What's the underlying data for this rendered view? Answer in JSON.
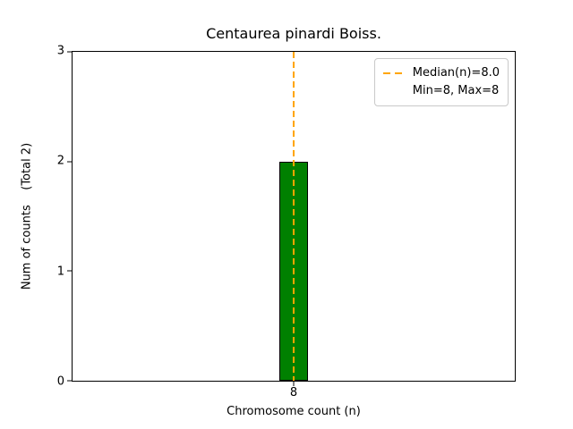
{
  "chart_data": {
    "type": "bar",
    "title": "Centaurea pinardi Boiss.",
    "xlabel": "Chromosome count (n)",
    "ylabel": "Num of counts    (Total 2)",
    "categories": [
      8
    ],
    "values": [
      2
    ],
    "xticks": [
      "8"
    ],
    "yticks": [
      0,
      1,
      2,
      3
    ],
    "ylim": [
      0,
      3
    ],
    "grid": false,
    "bar_color": "#008000",
    "bar_edge_color": "#000000",
    "median_line": {
      "x": 8,
      "value": 8.0,
      "color": "#FFA500",
      "style": "dashed",
      "label": "Median(n)=8.0"
    },
    "legend": {
      "position": "upper right",
      "entries": [
        "Median(n)=8.0",
        "Min=8, Max=8"
      ]
    }
  }
}
